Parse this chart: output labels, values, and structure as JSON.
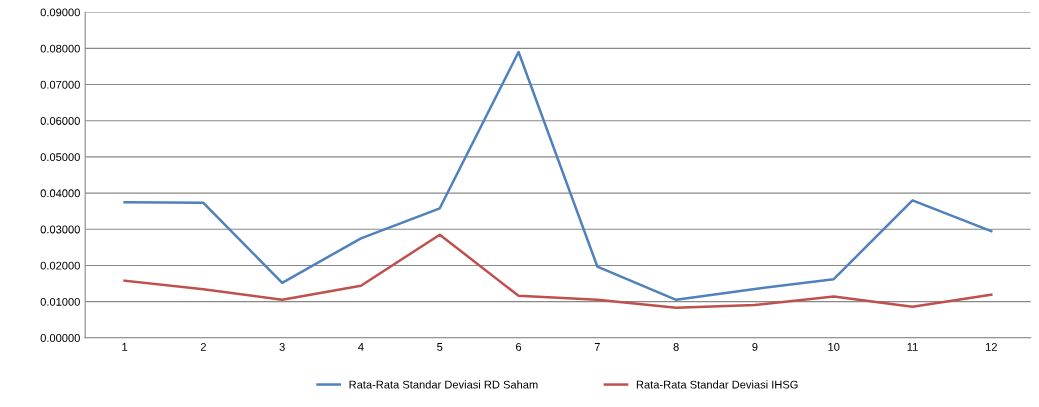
{
  "chart_data": {
    "type": "line",
    "categories": [
      "1",
      "2",
      "3",
      "4",
      "5",
      "6",
      "7",
      "8",
      "9",
      "10",
      "11",
      "12"
    ],
    "series": [
      {
        "name": "Rata-Rata Standar Deviasi RD Saham",
        "color": "#4f81bd",
        "values": [
          0.0375,
          0.0373,
          0.0152,
          0.0275,
          0.0358,
          0.079,
          0.0197,
          0.0105,
          0.0135,
          0.0162,
          0.038,
          0.0295
        ]
      },
      {
        "name": "Rata-Rata Standar Deviasi IHSG",
        "color": "#c0504d",
        "values": [
          0.0158,
          0.0134,
          0.0105,
          0.0144,
          0.0285,
          0.0116,
          0.0105,
          0.0083,
          0.0091,
          0.0114,
          0.0086,
          0.0119
        ]
      }
    ],
    "ylim": [
      0,
      0.09
    ],
    "yticks": [
      {
        "value": 0,
        "label": "0.00000"
      },
      {
        "value": 0.01,
        "label": "0.01000"
      },
      {
        "value": 0.02,
        "label": "0.02000"
      },
      {
        "value": 0.03,
        "label": "0.03000"
      },
      {
        "value": 0.04,
        "label": "0.04000"
      },
      {
        "value": 0.05,
        "label": "0.05000"
      },
      {
        "value": 0.06,
        "label": "0.06000"
      },
      {
        "value": 0.07,
        "label": "0.07000"
      },
      {
        "value": 0.08,
        "label": "0.08000"
      },
      {
        "value": 0.09,
        "label": "0.09000"
      }
    ],
    "grid": "y",
    "legend": "bottom",
    "marker": "none",
    "line_style": "solid"
  }
}
